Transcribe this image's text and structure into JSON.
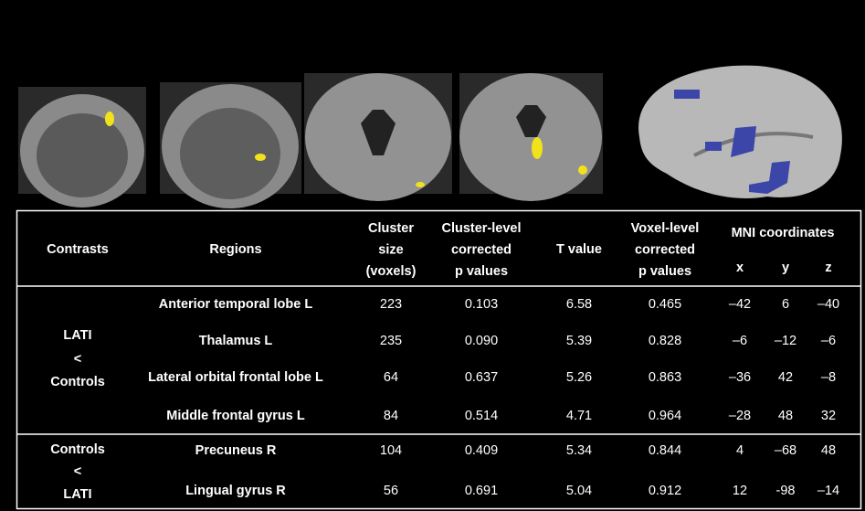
{
  "table": {
    "header": {
      "contrasts": "Contrasts",
      "regions": "Regions",
      "cluster_size": [
        "Cluster",
        "size",
        "(voxels)"
      ],
      "cluster_p": [
        "Cluster-level",
        "corrected",
        "p values"
      ],
      "t_value": "T value",
      "voxel_p": [
        "Voxel-level",
        "corrected",
        "p  values"
      ],
      "mni": "MNI coordinates",
      "mni_axes": [
        "x",
        "y",
        "z"
      ]
    },
    "groups": [
      {
        "contrast": [
          "LATI",
          "<",
          "Controls"
        ],
        "rows": [
          [
            "Anterior temporal lobe L",
            "223",
            "0.103",
            "6.58",
            "0.465",
            "–42",
            "6",
            "–40"
          ],
          [
            "Thalamus L",
            "235",
            "0.090",
            "5.39",
            "0.828",
            "–6",
            "–12",
            "–6"
          ],
          [
            "Lateral orbital frontal lobe L",
            "64",
            "0.637",
            "5.26",
            "0.863",
            "–36",
            "42",
            "–8"
          ],
          [
            "Middle frontal gyrus L",
            "84",
            "0.514",
            "4.71",
            "0.964",
            "–28",
            "48",
            "32"
          ]
        ]
      },
      {
        "contrast": [
          "Controls",
          "<",
          "LATI"
        ],
        "rows": [
          [
            "Precuneus R",
            "104",
            "0.409",
            "5.34",
            "0.844",
            "4",
            "–68",
            "48"
          ],
          [
            "Lingual gyrus R",
            "56",
            "0.691",
            "5.04",
            "0.912",
            "12",
            "-98",
            "–14"
          ]
        ]
      }
    ]
  }
}
